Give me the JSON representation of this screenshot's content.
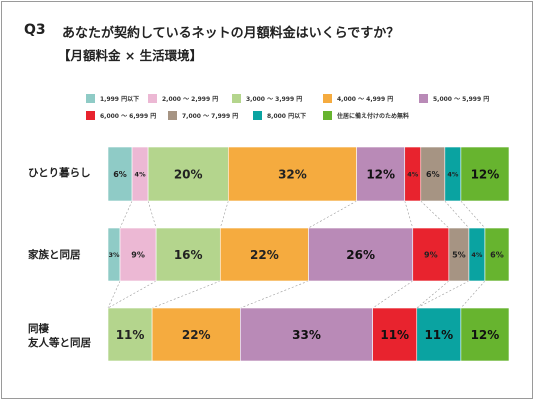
{
  "header": {
    "question_number": "Q3",
    "title": "あなたが契約しているネットの月額料金はいくらですか？",
    "subtitle": "【月額料金 × 生活環境】"
  },
  "chart_data": {
    "type": "bar",
    "orientation": "horizontal",
    "stacked": true,
    "normalized": true,
    "legend_position": "top",
    "categories": [
      "ひとり暮らし",
      "家族と同居",
      "同棲\n友人等と同居"
    ],
    "series": [
      {
        "name": "1,999 円以下",
        "color": "#8fcbc6",
        "values": [
          6,
          3,
          0
        ]
      },
      {
        "name": "2,000 ～ 2,999 円",
        "color": "#ecb8d4",
        "values": [
          4,
          9,
          0
        ]
      },
      {
        "name": "3,000 ～ 3,999 円",
        "color": "#b4d58d",
        "values": [
          20,
          16,
          11
        ]
      },
      {
        "name": "4,000 ～ 4,999 円",
        "color": "#f5ab3f",
        "values": [
          32,
          22,
          22
        ]
      },
      {
        "name": "5,000 ～ 5,999 円",
        "color": "#b98ab7",
        "values": [
          12,
          26,
          33
        ]
      },
      {
        "name": "6,000 ～ 6,999 円",
        "color": "#e8232e",
        "values": [
          4,
          9,
          11
        ]
      },
      {
        "name": "7,000 ～ 7,999 円",
        "color": "#a69483",
        "values": [
          6,
          5,
          0
        ]
      },
      {
        "name": "8,000 円以下",
        "color": "#0aa3a1",
        "values": [
          4,
          4,
          11
        ]
      },
      {
        "name": "住居に備え付けのため無料",
        "color": "#67b42f",
        "values": [
          12,
          6,
          12
        ]
      }
    ],
    "data_labels": [
      [
        "6%",
        "4%",
        "20%",
        "32%",
        "12%",
        "4%",
        "6%",
        "4%",
        "12%"
      ],
      [
        "3%",
        "9%",
        "16%",
        "22%",
        "26%",
        "9%",
        "5%",
        "4%",
        "6%"
      ],
      [
        "",
        "",
        "11%",
        "22%",
        "33%",
        "11%",
        "",
        "11%",
        "12%"
      ]
    ]
  }
}
